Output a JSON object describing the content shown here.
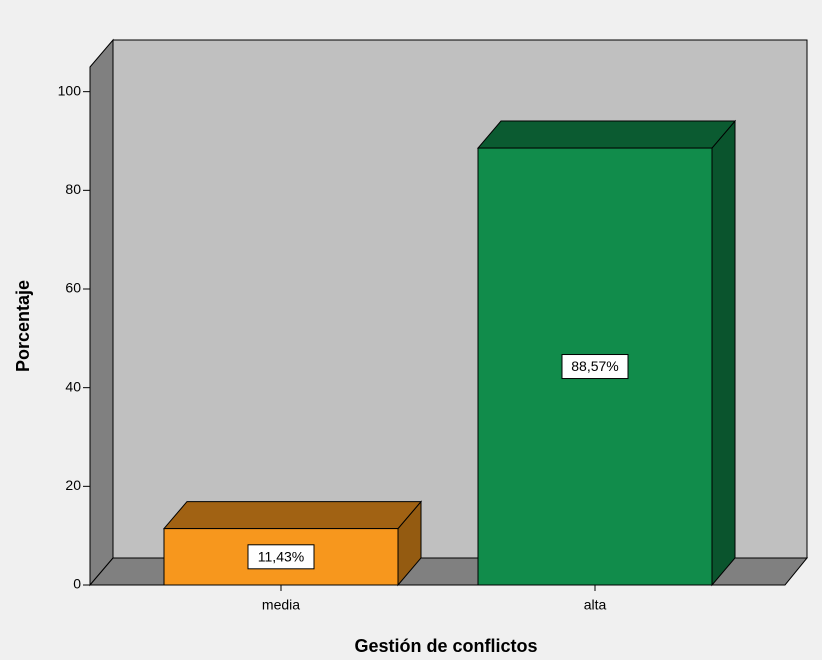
{
  "chart_data": {
    "type": "bar3d",
    "categories": [
      "media",
      "alta"
    ],
    "values": [
      11.43,
      88.57
    ],
    "value_labels": [
      "11,43%",
      "88,57%"
    ],
    "colors": [
      "#f7971d",
      "#118c4b"
    ],
    "ylim": [
      0,
      105
    ],
    "yticks": [
      0,
      20,
      40,
      60,
      80,
      100
    ],
    "ylabel": "Porcentaje",
    "xlabel": "Gestión de conflictos"
  }
}
